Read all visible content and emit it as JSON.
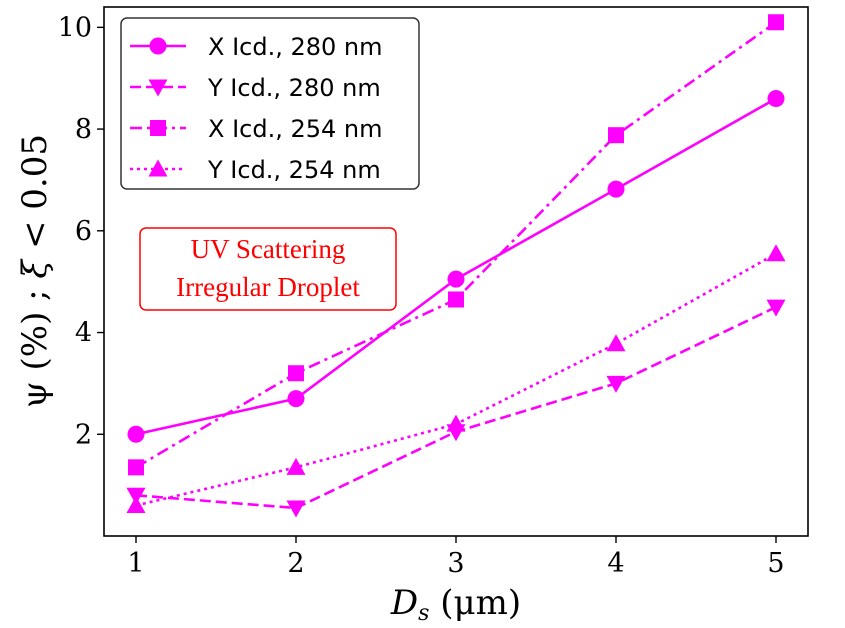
{
  "chart_data": {
    "type": "line",
    "title": "",
    "xlabel_var": "D",
    "xlabel_sub": "s",
    "xlabel_unit": " (μm)",
    "ylabel_left": "ψ (%) ; ",
    "ylabel_xi": "ξ",
    "ylabel_right": " < 0.05",
    "xlim": [
      0.8,
      5.2
    ],
    "ylim": [
      0.0,
      10.4
    ],
    "xticks": [
      1,
      2,
      3,
      4,
      5
    ],
    "yticks": [
      2,
      4,
      6,
      8,
      10
    ],
    "grid": false,
    "legend_position": "top-left",
    "x": [
      1,
      2,
      3,
      4,
      5
    ],
    "series": [
      {
        "name": "X Icd., 280 nm",
        "values": [
          2.0,
          2.7,
          5.05,
          6.82,
          8.6
        ],
        "marker": "circle",
        "linestyle": "solid",
        "color": "#ff00ff"
      },
      {
        "name": "Y Icd., 280 nm",
        "values": [
          0.8,
          0.55,
          2.05,
          3.0,
          4.5
        ],
        "marker": "triangle-down",
        "linestyle": "dashed",
        "color": "#ff00ff"
      },
      {
        "name": "X Icd., 254 nm",
        "values": [
          1.35,
          3.2,
          4.65,
          7.88,
          10.1
        ],
        "marker": "square",
        "linestyle": "dashdot",
        "color": "#ff00ff"
      },
      {
        "name": "Y Icd., 254 nm",
        "values": [
          0.6,
          1.35,
          2.2,
          3.78,
          5.55
        ],
        "marker": "triangle-up",
        "linestyle": "dotted",
        "color": "#ff00ff"
      }
    ],
    "annotation": {
      "lines": [
        "UV Scattering",
        "Irregular Droplet"
      ],
      "color": "#ff0000"
    }
  }
}
